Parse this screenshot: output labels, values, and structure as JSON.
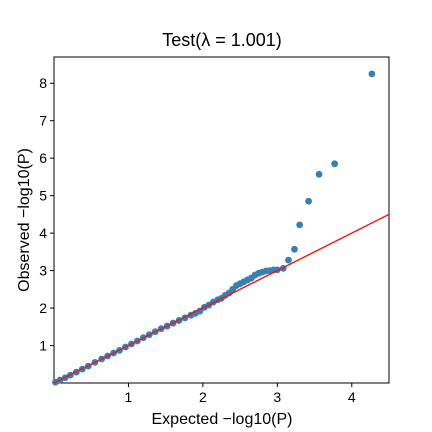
{
  "chart_data": {
    "type": "scatter",
    "title": "Test(λ = 1.001)",
    "xlabel": "Expected −log10(P)",
    "ylabel": "Observed −log10(P)",
    "xlim": [
      0,
      4.5
    ],
    "ylim": [
      0,
      8.7
    ],
    "xticks": [
      1,
      2,
      3,
      4
    ],
    "yticks": [
      1,
      2,
      3,
      4,
      5,
      6,
      7,
      8
    ],
    "grid": false,
    "legend": "none",
    "reference_line": {
      "x": [
        0,
        4.5
      ],
      "y": [
        0,
        4.5
      ],
      "color": "#e41a1c"
    },
    "point_color": "#3a7fb2",
    "series": [
      {
        "x": [
          0.02,
          0.08,
          0.15,
          0.22,
          0.3,
          0.38,
          0.46,
          0.55,
          0.64,
          0.72,
          0.8,
          0.88,
          0.96,
          1.04,
          1.12,
          1.2,
          1.28,
          1.36,
          1.44,
          1.52,
          1.6,
          1.68,
          1.76,
          1.84,
          1.9,
          1.96,
          2.02,
          2.08,
          2.14,
          2.2,
          2.25,
          2.3,
          2.35,
          2.4,
          2.45,
          2.5,
          2.55,
          2.6,
          2.65,
          2.7,
          2.75,
          2.8,
          2.85,
          2.9,
          2.95,
          3.0,
          3.08,
          3.15,
          3.23,
          3.3,
          3.42,
          3.56,
          3.77,
          4.27
        ],
        "y": [
          0.02,
          0.08,
          0.14,
          0.21,
          0.29,
          0.37,
          0.45,
          0.55,
          0.64,
          0.72,
          0.8,
          0.87,
          0.96,
          1.04,
          1.12,
          1.21,
          1.29,
          1.37,
          1.45,
          1.52,
          1.6,
          1.67,
          1.74,
          1.81,
          1.86,
          1.92,
          2.02,
          2.08,
          2.16,
          2.22,
          2.26,
          2.34,
          2.4,
          2.5,
          2.6,
          2.65,
          2.7,
          2.75,
          2.8,
          2.88,
          2.93,
          2.96,
          2.99,
          3.0,
          3.02,
          3.02,
          3.06,
          3.28,
          3.57,
          4.22,
          4.85,
          5.57,
          5.85,
          8.25
        ]
      }
    ]
  }
}
